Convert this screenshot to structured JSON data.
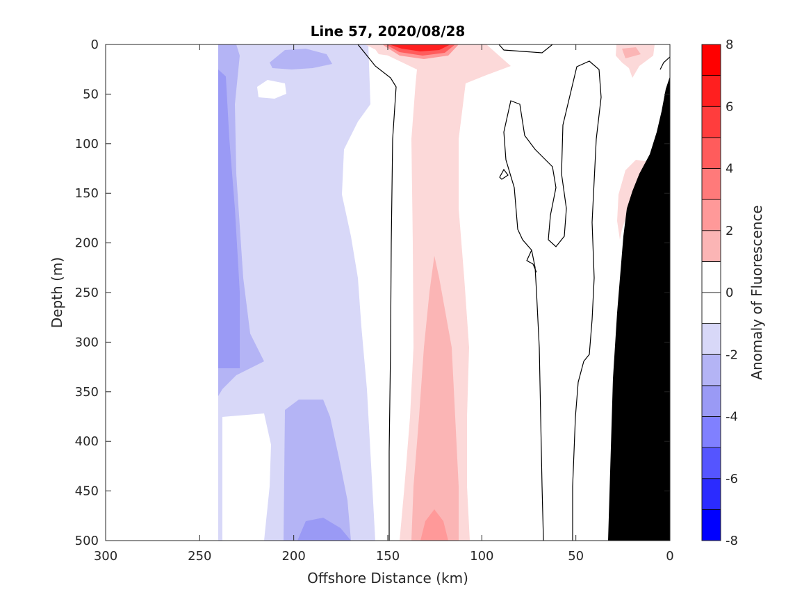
{
  "chart_data": {
    "type": "heatmap",
    "subtype": "filled-contour-section",
    "title": "Line 57, 2020/08/28",
    "xlabel": "Offshore Distance (km)",
    "ylabel": "Depth (m)",
    "colorbar_label": "Anomaly of Fluorescence",
    "xlim": [
      300,
      0
    ],
    "x_reversed": true,
    "ylim": [
      0,
      500
    ],
    "y_reversed": true,
    "x_ticks": [
      "300",
      "250",
      "200",
      "150",
      "100",
      "50",
      "0"
    ],
    "x_tick_values": [
      300,
      250,
      200,
      150,
      100,
      50,
      0
    ],
    "y_ticks": [
      "0",
      "50",
      "100",
      "150",
      "200",
      "250",
      "300",
      "350",
      "400",
      "450",
      "500"
    ],
    "y_tick_values": [
      0,
      50,
      100,
      150,
      200,
      250,
      300,
      350,
      400,
      450,
      500
    ],
    "colorbar_ticks": [
      "8",
      "6",
      "4",
      "2",
      "0",
      "-2",
      "-4",
      "-6",
      "-8"
    ],
    "colorbar_tick_values": [
      8,
      6,
      4,
      2,
      0,
      -2,
      -4,
      -6,
      -8
    ],
    "contour_levels": [
      -8,
      -7,
      -6,
      -5,
      -4,
      -3,
      -2,
      -1,
      0,
      1,
      2,
      3,
      4,
      5,
      6,
      7,
      8
    ],
    "zero_contour_lines": true,
    "colors": {
      "-8": "#0000ff",
      "-7": "#2b2bff",
      "-6": "#5555ff",
      "-5": "#8080ff",
      "-4": "#9a9af5",
      "-3": "#b4b4f5",
      "-2": "#d8d8f8",
      "0": "#ffffff",
      "1": "#fcd9d9",
      "2": "#fbb5b5",
      "3": "#ff9999",
      "4": "#ff7a7a",
      "5": "#ff5c5c",
      "6": "#ff3d3d",
      "7": "#ff1f1f",
      "8": "#ff0000",
      "bathymetry": "#000000"
    },
    "regions": [
      {
        "name": "no-data",
        "x_range": [
          300,
          240
        ],
        "depth_range": [
          0,
          500
        ],
        "value": null
      },
      {
        "name": "offshore-negative-core",
        "x_range": [
          240,
          228
        ],
        "depth_range": [
          0,
          330
        ],
        "value": -4
      },
      {
        "name": "offshore-negative-band",
        "x_range": [
          228,
          165
        ],
        "depth_range": [
          0,
          370
        ],
        "value": -2
      },
      {
        "name": "deep-negative-pocket",
        "x_center": 182,
        "depth_range": [
          355,
          500
        ],
        "value": -3
      },
      {
        "name": "zero-band",
        "x_range": [
          165,
          145
        ],
        "depth_range": [
          0,
          500
        ],
        "value": 0
      },
      {
        "name": "positive-column",
        "x_range": [
          145,
          110
        ],
        "depth_range": [
          0,
          500
        ],
        "value": 1
      },
      {
        "name": "positive-core",
        "x_center": 126,
        "depth_range": [
          210,
          500
        ],
        "value": 2
      },
      {
        "name": "surface-maximum",
        "x_center": 130,
        "depth_range": [
          0,
          15
        ],
        "value": 8
      },
      {
        "name": "nearshore-positive",
        "x_range": [
          28,
          15
        ],
        "depth_range": [
          120,
          210
        ],
        "value": 1
      },
      {
        "name": "surface-positive-patch",
        "x_center": 14,
        "depth_range": [
          0,
          35
        ],
        "value": 1
      },
      {
        "name": "bathymetry",
        "x_range": [
          33,
          0
        ],
        "depth_range": [
          35,
          500
        ],
        "value": null
      }
    ]
  }
}
